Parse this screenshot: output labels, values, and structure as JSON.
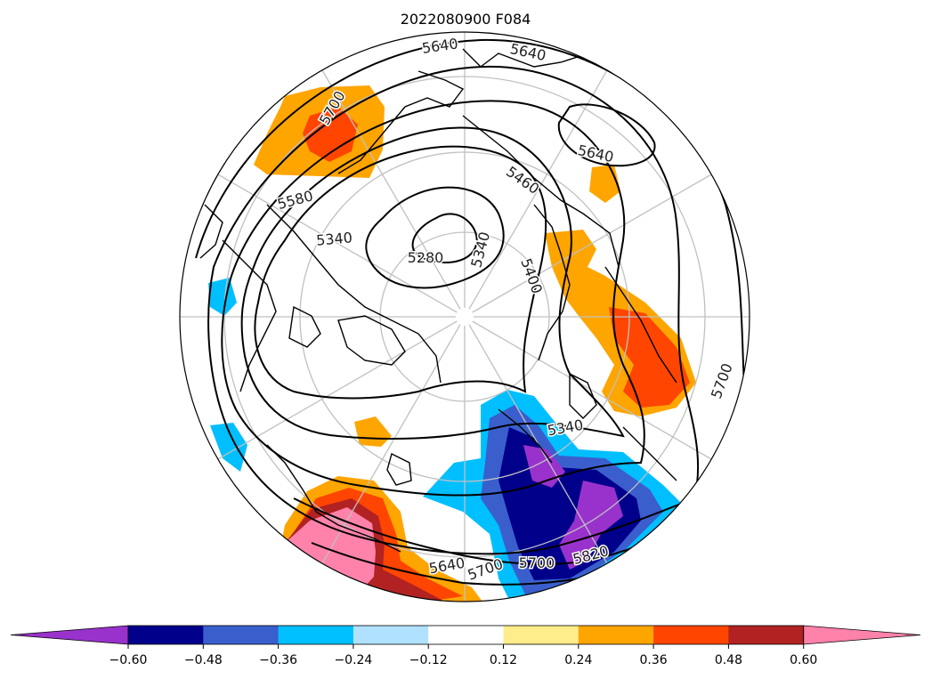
{
  "title": "2022080900 F084",
  "colorbar": {
    "colors": [
      "#9932cc",
      "#00008b",
      "#3a5fcd",
      "#00bfff",
      "#b0e2ff",
      "#ffffff",
      "#ffec8b",
      "#ffa500",
      "#ff4500",
      "#b22222",
      "#ff82ab"
    ],
    "tick_labels": [
      "−0.60",
      "−0.48",
      "−0.36",
      "−0.24",
      "−0.12",
      "0.12",
      "0.24",
      "0.36",
      "0.48",
      "0.60"
    ]
  },
  "contour_labels": [
    "5640",
    "5640",
    "5700",
    "5640",
    "5580",
    "5460",
    "5340",
    "5280",
    "5340",
    "5400",
    "5700",
    "5340",
    "5640",
    "5700",
    "5700",
    "5820"
  ]
}
